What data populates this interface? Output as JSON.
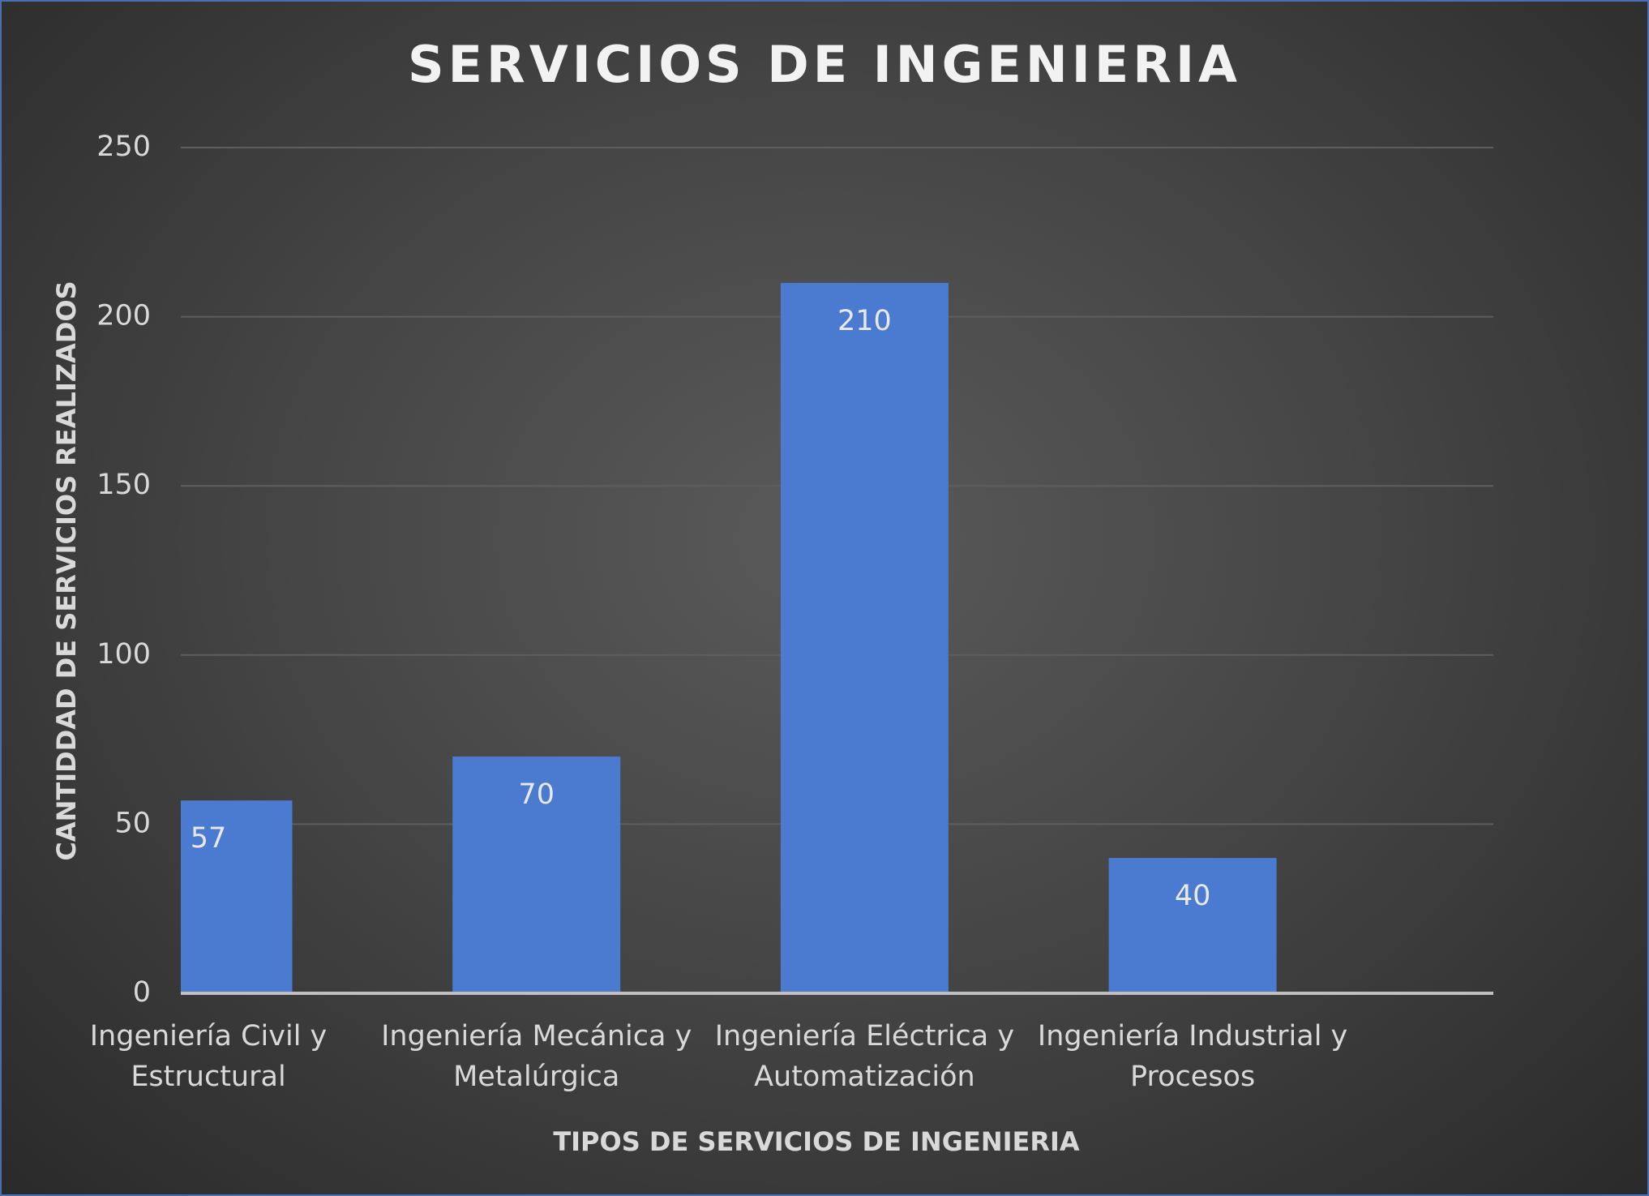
{
  "chart_data": {
    "type": "bar",
    "title": "SERVICIOS DE INGENIERIA",
    "x_label": "TIPOS DE SERVICIOS DE INGENIERIA",
    "y_label": "CANTIDDAD DE SERVICIOS REALIZADOS",
    "categories": [
      "Ingeniería Civil y Estructural",
      "Ingeniería Mecánica y Metalúrgica",
      "Ingeniería Eléctrica y Automatización",
      "Ingeniería Industrial y Procesos"
    ],
    "values": [
      57,
      70,
      210,
      40
    ],
    "color": "#4a7bd0",
    "ylim": [
      0,
      250
    ],
    "yticks": [
      0,
      50,
      100,
      150,
      200,
      250
    ],
    "grid": true
  }
}
